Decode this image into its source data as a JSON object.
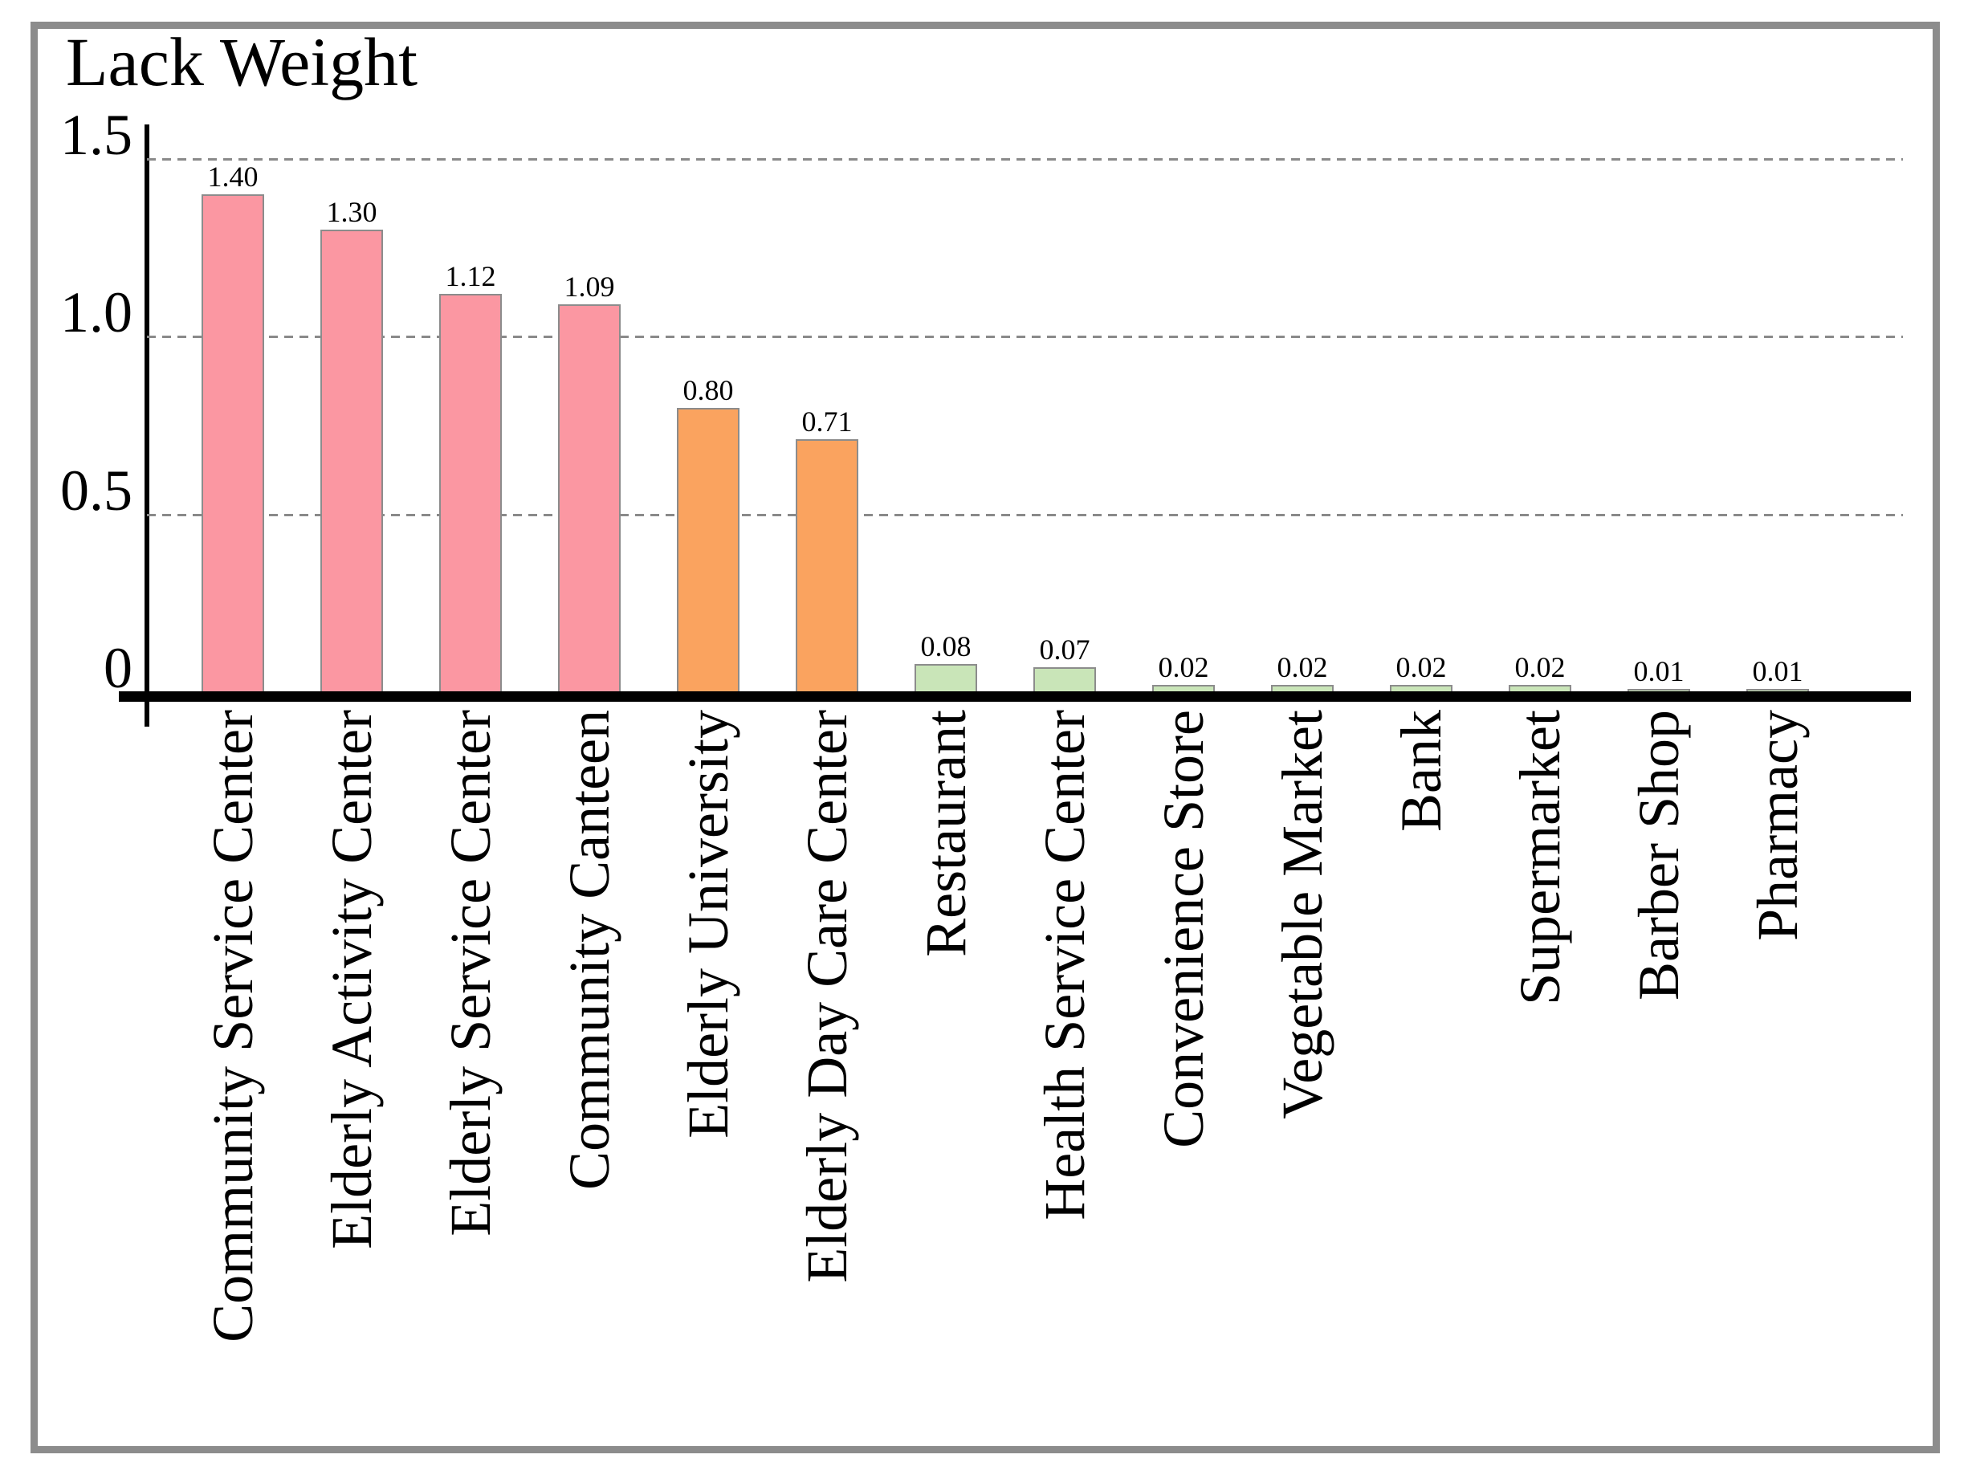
{
  "chart_data": {
    "type": "bar",
    "title": "Lack Weight",
    "xlabel": "",
    "ylabel": "Lack Weight",
    "ylim": [
      0,
      1.74
    ],
    "grid": "horizontal-dashed",
    "legend_position": "none",
    "categories": [
      "Community Service Center",
      "Elderly Activity Center",
      "Elderly Service Center",
      "Community Canteen",
      "Elderly University",
      "Elderly Day Care Center",
      "Restaurant",
      "Health Service Center",
      "Convenience Store",
      "Vegetable Market",
      "Bank",
      "Supermarket",
      "Barber Shop",
      "Pharmacy"
    ],
    "values": [
      1.4,
      1.3,
      1.12,
      1.09,
      0.8,
      0.71,
      0.08,
      0.07,
      0.02,
      0.02,
      0.02,
      0.02,
      0.01,
      0.01
    ],
    "value_labels": [
      "1.40",
      "1.30",
      "1.12",
      "1.09",
      "0.80",
      "0.71",
      "0.08",
      "0.07",
      "0.02",
      "0.02",
      "0.02",
      "0.02",
      "0.01",
      "0.01"
    ],
    "bar_colors": [
      "#fb97a2",
      "#fb97a2",
      "#fb97a2",
      "#fb97a2",
      "#faa35f",
      "#faa35f",
      "#c9e5b8",
      "#c9e5b8",
      "#c9e5b8",
      "#c9e5b8",
      "#c9e5b8",
      "#c9e5b8",
      "#c9e5b8",
      "#c9e5b8"
    ],
    "yticks": [
      {
        "label": "1.5",
        "value": 1.5
      },
      {
        "label": "1.0",
        "value": 1.0
      },
      {
        "label": "0.5",
        "value": 0.5
      },
      {
        "label": "0",
        "value": 0.0
      }
    ]
  },
  "colors": {
    "group_high_pink": "#fb97a2",
    "group_mid_orange": "#faa35f",
    "group_low_green": "#c9e5b8",
    "bar_border": "#8c8c8c",
    "gridline": "#8a8a8a",
    "axis": "#000000",
    "frame_border": "#8c8c8c",
    "background": "#ffffff"
  }
}
